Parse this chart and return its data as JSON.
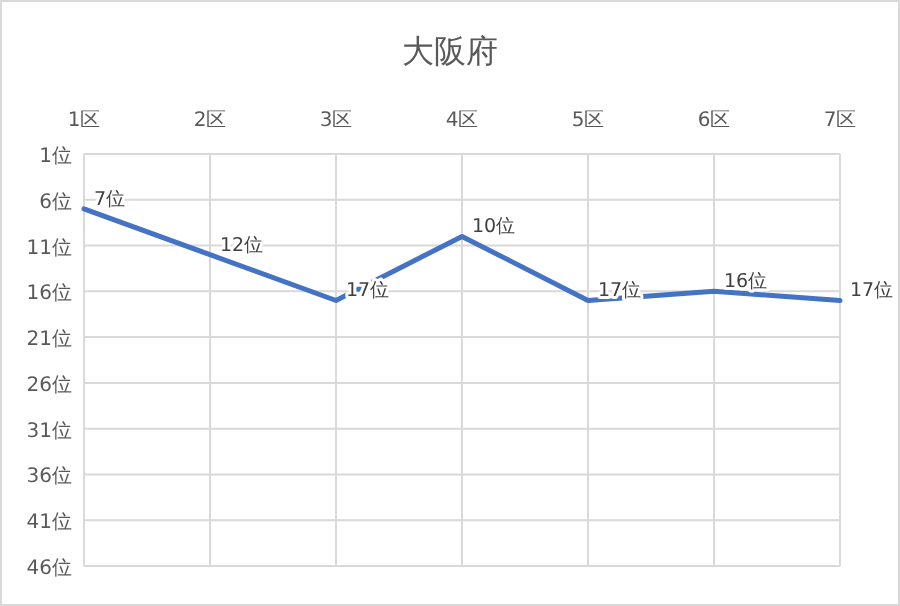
{
  "chart_data": {
    "type": "line",
    "title": "大阪府",
    "categories": [
      "1区",
      "2区",
      "3区",
      "4区",
      "5区",
      "6区",
      "7区"
    ],
    "series": [
      {
        "color": "#4472c4",
        "values": [
          7,
          12,
          17,
          10,
          17,
          16,
          17
        ],
        "value_labels": [
          "7位",
          "12位",
          "17位",
          "10位",
          "17位",
          "16位",
          "17位"
        ]
      }
    ],
    "ylim": [
      46,
      1
    ],
    "yticks": [
      {
        "value": 1,
        "label": "1位"
      },
      {
        "value": 6,
        "label": "6位"
      },
      {
        "value": 11,
        "label": "11位"
      },
      {
        "value": 16,
        "label": "16位"
      },
      {
        "value": 21,
        "label": "21位"
      },
      {
        "value": 26,
        "label": "26位"
      },
      {
        "value": 31,
        "label": "31位"
      },
      {
        "value": 36,
        "label": "36位"
      },
      {
        "value": 41,
        "label": "41位"
      },
      {
        "value": 46,
        "label": "46位"
      }
    ],
    "grid": true,
    "marker": "none",
    "line_style": "solid"
  }
}
